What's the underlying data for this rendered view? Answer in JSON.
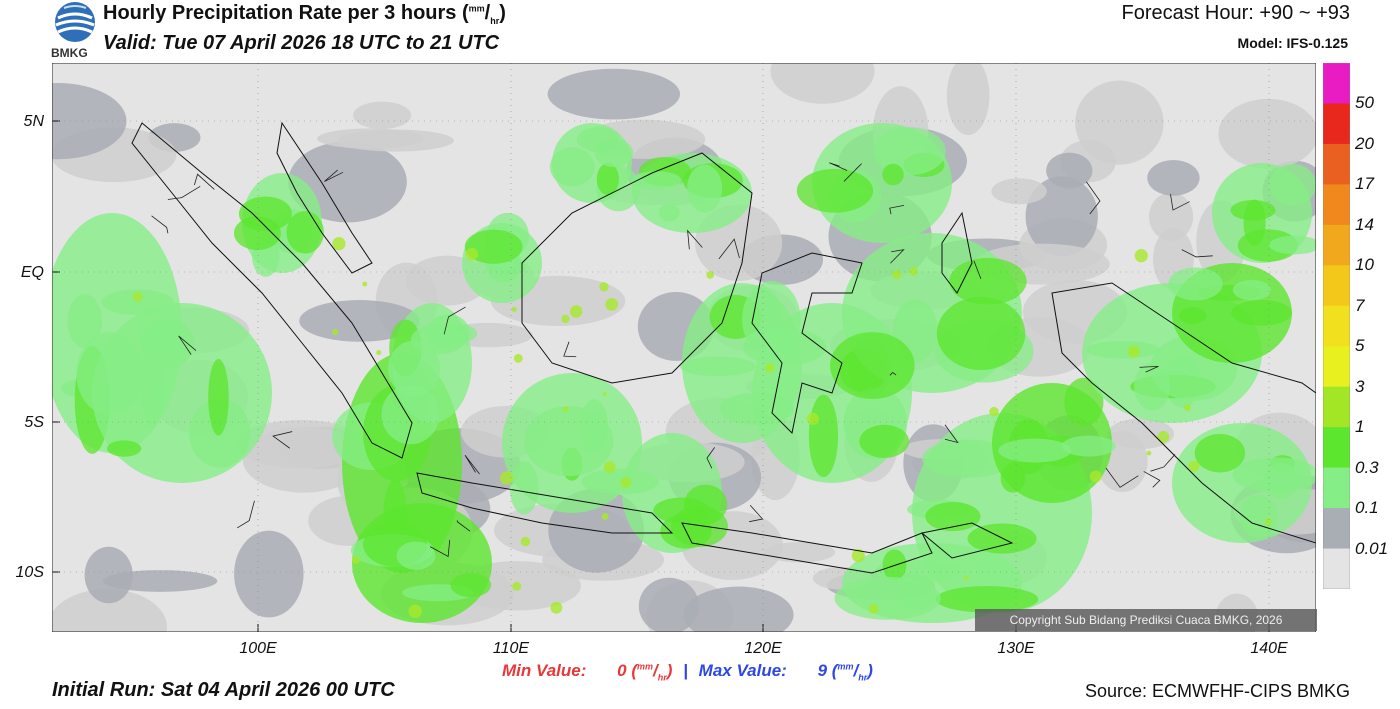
{
  "header": {
    "logo_text": "BMKG",
    "title_main": "Hourly Precipitation Rate per 3 hours (",
    "title_unit_num": "mm",
    "title_unit_den": "hr",
    "title_close": ")",
    "valid": "Valid: Tue 07 April 2026 18 UTC to 21 UTC",
    "forecast_hour": "Forecast Hour: +90 ~ +93",
    "model": "Model: IFS-0.125"
  },
  "map": {
    "lat_labels": [
      "5N",
      "EQ",
      "5S",
      "10S"
    ],
    "lon_labels": [
      "100E",
      "110E",
      "120E",
      "130E",
      "140E"
    ],
    "copyright": "Copyright Sub Bidang Prediksi Cuaca BMKG, 2026",
    "colors": {
      "ocean_base": "#e4e4e4",
      "land": "#ffffff",
      "light_gray": "#cfcfcf",
      "gray": "#a9adb4",
      "light_green": "#86ee86",
      "green": "#5ce62e",
      "bright_green": "#a8e82a"
    }
  },
  "colorbar": {
    "labels": [
      "50",
      "20",
      "17",
      "14",
      "10",
      "7",
      "5",
      "3",
      "1",
      "0.3",
      "0.1",
      "0.01"
    ],
    "colors": [
      "#e81cc2",
      "#e8281c",
      "#ea6020",
      "#f0881e",
      "#f2a81c",
      "#f4c81a",
      "#f0e01e",
      "#e8f020",
      "#a2e626",
      "#5ce62e",
      "#86ee86",
      "#a9adb4",
      "#e4e4e4"
    ]
  },
  "footer": {
    "min_label": "Min Value:",
    "min_value": "0",
    "max_label": "Max Value:",
    "max_value": "9",
    "unit_num": "mm",
    "unit_den": "hr",
    "separator": "|",
    "initial_run": "Initial Run: Sat 04 April 2026 00 UTC",
    "source": "Source: ECMWFHF-CIPS BMKG"
  }
}
